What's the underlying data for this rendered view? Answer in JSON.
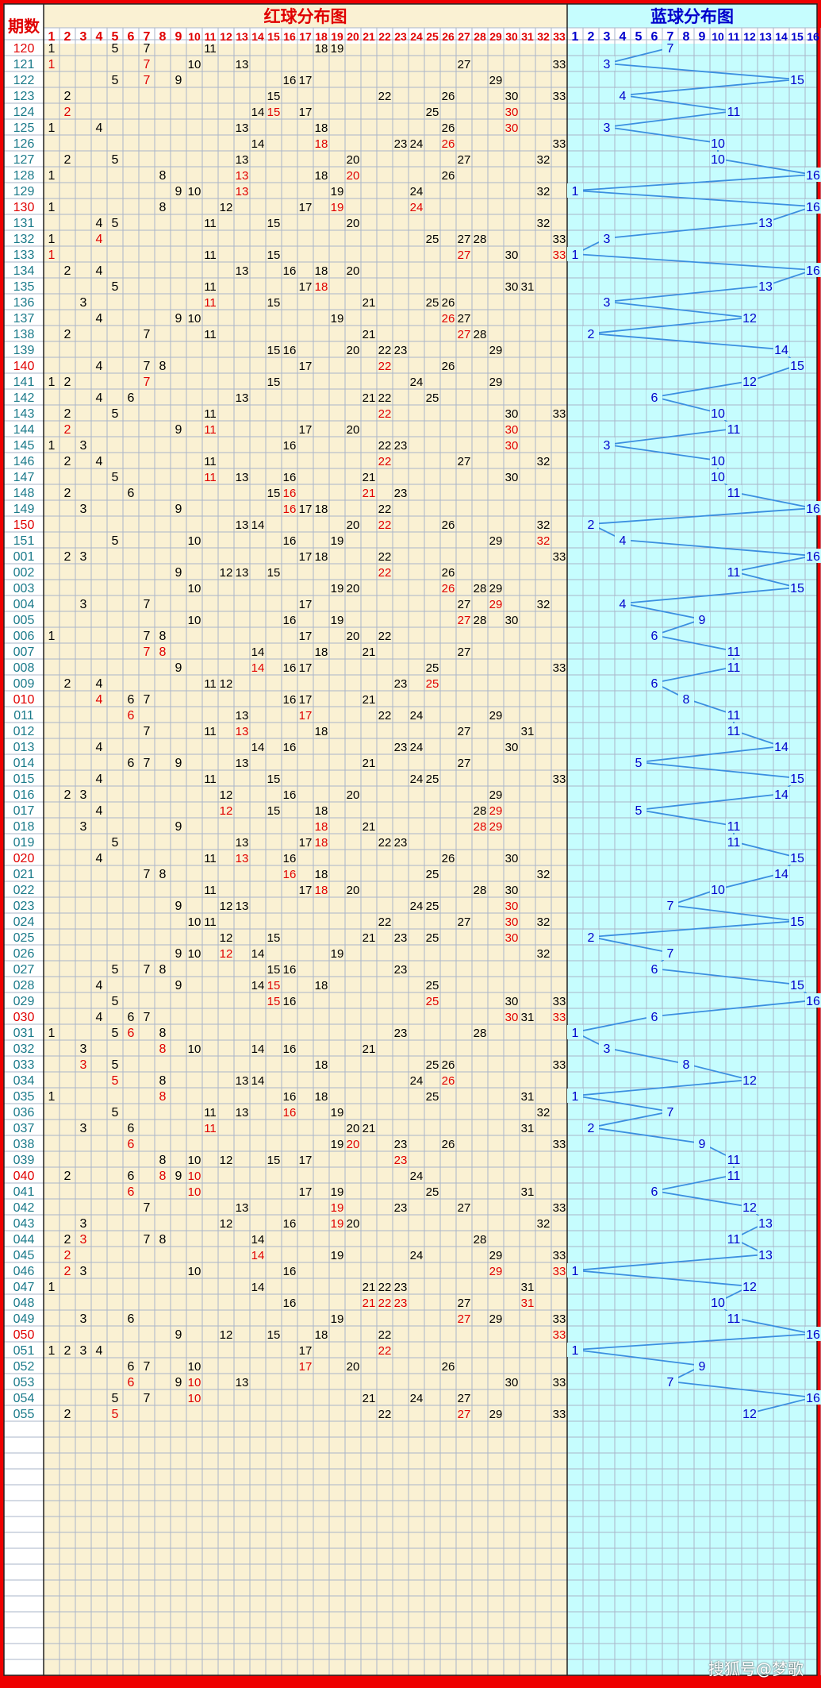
{
  "headers": {
    "period": "期数",
    "red": "红球分布图",
    "blue": "蓝球分布图"
  },
  "watermark": "搜狐号@梦歌",
  "colors": {
    "frame": "#ee0000",
    "redBg": "#faf1d3",
    "blueBg": "#c6fdfe",
    "grid": "#aab5c8",
    "number": "#000000",
    "repeat": "#e00000",
    "blueNum": "#0000cc",
    "line": "#3b8fe0",
    "period": "#1a7a8a",
    "periodAlt": "#e00000"
  },
  "chart_data": {
    "type": "table",
    "red_columns": 33,
    "blue_columns": 16,
    "rows": [
      {
        "p": "120",
        "r": [
          1,
          5,
          7,
          11,
          18,
          19
        ],
        "b": 7
      },
      {
        "p": "121",
        "r": [
          1,
          7,
          10,
          13,
          27,
          33
        ],
        "b": 3
      },
      {
        "p": "122",
        "r": [
          5,
          7,
          9,
          16,
          17,
          29
        ],
        "b": 15
      },
      {
        "p": "123",
        "r": [
          2,
          15,
          22,
          26,
          30,
          33
        ],
        "b": 4
      },
      {
        "p": "124",
        "r": [
          2,
          14,
          15,
          17,
          25,
          30
        ],
        "b": 11
      },
      {
        "p": "125",
        "r": [
          1,
          4,
          13,
          18,
          26,
          30
        ],
        "b": 3
      },
      {
        "p": "126",
        "r": [
          14,
          18,
          23,
          24,
          26,
          33
        ],
        "b": 10
      },
      {
        "p": "127",
        "r": [
          2,
          5,
          13,
          20,
          27,
          32
        ],
        "b": 10
      },
      {
        "p": "128",
        "r": [
          1,
          8,
          13,
          18,
          20,
          26
        ],
        "b": 16
      },
      {
        "p": "129",
        "r": [
          9,
          10,
          13,
          19,
          24,
          32
        ],
        "b": 1
      },
      {
        "p": "130",
        "r": [
          1,
          8,
          12,
          17,
          19,
          24
        ],
        "b": 16
      },
      {
        "p": "131",
        "r": [
          4,
          5,
          11,
          15,
          20,
          32
        ],
        "b": 13
      },
      {
        "p": "132",
        "r": [
          1,
          4,
          25,
          27,
          28,
          33
        ],
        "b": 3
      },
      {
        "p": "133",
        "r": [
          1,
          11,
          15,
          27,
          30,
          33
        ],
        "b": 1
      },
      {
        "p": "134",
        "r": [
          2,
          4,
          13,
          16,
          18,
          20
        ],
        "b": 16
      },
      {
        "p": "135",
        "r": [
          5,
          11,
          17,
          18,
          30,
          31
        ],
        "b": 13
      },
      {
        "p": "136",
        "r": [
          3,
          11,
          15,
          21,
          25,
          26
        ],
        "b": 3
      },
      {
        "p": "137",
        "r": [
          4,
          9,
          10,
          19,
          26,
          27
        ],
        "b": 12
      },
      {
        "p": "138",
        "r": [
          2,
          7,
          11,
          21,
          27,
          28
        ],
        "b": 2
      },
      {
        "p": "139",
        "r": [
          15,
          16,
          20,
          22,
          23,
          29
        ],
        "b": 14
      },
      {
        "p": "140",
        "r": [
          4,
          7,
          8,
          17,
          22,
          26
        ],
        "b": 15
      },
      {
        "p": "141",
        "r": [
          1,
          2,
          7,
          15,
          24,
          29
        ],
        "b": 12
      },
      {
        "p": "142",
        "r": [
          4,
          6,
          13,
          21,
          22,
          25
        ],
        "b": 6
      },
      {
        "p": "143",
        "r": [
          2,
          5,
          11,
          22,
          30,
          33
        ],
        "b": 10
      },
      {
        "p": "144",
        "r": [
          2,
          9,
          11,
          17,
          20,
          30
        ],
        "b": 11
      },
      {
        "p": "145",
        "r": [
          1,
          3,
          16,
          22,
          23,
          30
        ],
        "b": 3
      },
      {
        "p": "146",
        "r": [
          2,
          4,
          11,
          22,
          27,
          32
        ],
        "b": 10
      },
      {
        "p": "147",
        "r": [
          5,
          11,
          13,
          16,
          21,
          30
        ],
        "b": 10
      },
      {
        "p": "148",
        "r": [
          2,
          6,
          15,
          16,
          21,
          23
        ],
        "b": 11
      },
      {
        "p": "149",
        "r": [
          3,
          9,
          16,
          17,
          18,
          22
        ],
        "b": 16
      },
      {
        "p": "150",
        "r": [
          13,
          14,
          20,
          22,
          26,
          32
        ],
        "b": 2
      },
      {
        "p": "151",
        "r": [
          5,
          10,
          16,
          19,
          29,
          32
        ],
        "b": 4
      },
      {
        "p": "001",
        "r": [
          2,
          3,
          17,
          18,
          22,
          33
        ],
        "b": 16
      },
      {
        "p": "002",
        "r": [
          9,
          12,
          13,
          15,
          22,
          26
        ],
        "b": 11
      },
      {
        "p": "003",
        "r": [
          10,
          19,
          20,
          26,
          28,
          29
        ],
        "b": 15
      },
      {
        "p": "004",
        "r": [
          3,
          7,
          17,
          27,
          29,
          32
        ],
        "b": 4
      },
      {
        "p": "005",
        "r": [
          10,
          16,
          19,
          27,
          28,
          30
        ],
        "b": 9
      },
      {
        "p": "006",
        "r": [
          1,
          7,
          8,
          17,
          20,
          22
        ],
        "b": 6
      },
      {
        "p": "007",
        "r": [
          7,
          8,
          14,
          18,
          21,
          27
        ],
        "b": 11
      },
      {
        "p": "008",
        "r": [
          9,
          14,
          16,
          17,
          25,
          33
        ],
        "b": 11
      },
      {
        "p": "009",
        "r": [
          2,
          4,
          11,
          12,
          23,
          25
        ],
        "b": 6
      },
      {
        "p": "010",
        "r": [
          4,
          6,
          7,
          16,
          17,
          21
        ],
        "b": 8
      },
      {
        "p": "011",
        "r": [
          6,
          13,
          17,
          22,
          24,
          29
        ],
        "b": 11
      },
      {
        "p": "012",
        "r": [
          7,
          11,
          13,
          18,
          27,
          31
        ],
        "b": 11
      },
      {
        "p": "013",
        "r": [
          4,
          14,
          16,
          23,
          24,
          30
        ],
        "b": 14
      },
      {
        "p": "014",
        "r": [
          6,
          7,
          9,
          13,
          21,
          27
        ],
        "b": 5
      },
      {
        "p": "015",
        "r": [
          4,
          11,
          15,
          24,
          25,
          33
        ],
        "b": 15
      },
      {
        "p": "016",
        "r": [
          2,
          3,
          12,
          16,
          20,
          29
        ],
        "b": 14
      },
      {
        "p": "017",
        "r": [
          4,
          12,
          15,
          18,
          28,
          29
        ],
        "b": 5
      },
      {
        "p": "018",
        "r": [
          3,
          9,
          18,
          21,
          28,
          29
        ],
        "b": 11
      },
      {
        "p": "019",
        "r": [
          5,
          13,
          17,
          18,
          22,
          23
        ],
        "b": 11
      },
      {
        "p": "020",
        "r": [
          4,
          11,
          13,
          16,
          26,
          30
        ],
        "b": 15
      },
      {
        "p": "021",
        "r": [
          7,
          8,
          16,
          18,
          25,
          32
        ],
        "b": 14
      },
      {
        "p": "022",
        "r": [
          11,
          17,
          18,
          20,
          28,
          30
        ],
        "b": 10
      },
      {
        "p": "023",
        "r": [
          9,
          12,
          13,
          24,
          25,
          30
        ],
        "b": 7
      },
      {
        "p": "024",
        "r": [
          10,
          11,
          22,
          27,
          30,
          32
        ],
        "b": 15
      },
      {
        "p": "025",
        "r": [
          12,
          15,
          21,
          23,
          25,
          30
        ],
        "b": 2
      },
      {
        "p": "026",
        "r": [
          9,
          10,
          12,
          14,
          19,
          32
        ],
        "b": 7
      },
      {
        "p": "027",
        "r": [
          5,
          7,
          8,
          15,
          16,
          23
        ],
        "b": 6
      },
      {
        "p": "028",
        "r": [
          4,
          9,
          14,
          15,
          18,
          25
        ],
        "b": 15
      },
      {
        "p": "029",
        "r": [
          5,
          15,
          16,
          25,
          30,
          33
        ],
        "b": 16
      },
      {
        "p": "030",
        "r": [
          4,
          6,
          7,
          30,
          31,
          33
        ],
        "b": 6
      },
      {
        "p": "031",
        "r": [
          1,
          5,
          6,
          8,
          23,
          28
        ],
        "b": 1
      },
      {
        "p": "032",
        "r": [
          3,
          8,
          10,
          14,
          16,
          21
        ],
        "b": 3
      },
      {
        "p": "033",
        "r": [
          3,
          5,
          18,
          25,
          26,
          33
        ],
        "b": 8
      },
      {
        "p": "034",
        "r": [
          5,
          8,
          13,
          14,
          24,
          26
        ],
        "b": 12
      },
      {
        "p": "035",
        "r": [
          1,
          8,
          16,
          18,
          25,
          31
        ],
        "b": 1
      },
      {
        "p": "036",
        "r": [
          5,
          11,
          13,
          16,
          19,
          32
        ],
        "b": 7
      },
      {
        "p": "037",
        "r": [
          3,
          6,
          11,
          20,
          21,
          31
        ],
        "b": 2
      },
      {
        "p": "038",
        "r": [
          6,
          19,
          20,
          23,
          26,
          33
        ],
        "b": 9
      },
      {
        "p": "039",
        "r": [
          8,
          10,
          12,
          15,
          17,
          23
        ],
        "b": 11
      },
      {
        "p": "040",
        "r": [
          2,
          6,
          8,
          9,
          10,
          24
        ],
        "b": 11
      },
      {
        "p": "041",
        "r": [
          6,
          10,
          17,
          19,
          25,
          31
        ],
        "b": 6
      },
      {
        "p": "042",
        "r": [
          7,
          13,
          19,
          23,
          27,
          33
        ],
        "b": 12
      },
      {
        "p": "043",
        "r": [
          3,
          12,
          16,
          19,
          20,
          32
        ],
        "b": 13
      },
      {
        "p": "044",
        "r": [
          2,
          3,
          7,
          8,
          14,
          28
        ],
        "b": 11
      },
      {
        "p": "045",
        "r": [
          2,
          14,
          19,
          24,
          29,
          33
        ],
        "b": 13
      },
      {
        "p": "046",
        "r": [
          2,
          3,
          10,
          16,
          29,
          33
        ],
        "b": 1
      },
      {
        "p": "047",
        "r": [
          1,
          14,
          21,
          22,
          23,
          31
        ],
        "b": 12
      },
      {
        "p": "048",
        "r": [
          16,
          21,
          22,
          23,
          27,
          31
        ],
        "b": 10
      },
      {
        "p": "049",
        "r": [
          3,
          6,
          19,
          27,
          29,
          33
        ],
        "b": 11
      },
      {
        "p": "050",
        "r": [
          9,
          12,
          15,
          18,
          22,
          33
        ],
        "b": 16
      },
      {
        "p": "051",
        "r": [
          1,
          2,
          3,
          4,
          17,
          22
        ],
        "b": 1
      },
      {
        "p": "052",
        "r": [
          6,
          7,
          10,
          17,
          20,
          26
        ],
        "b": 9
      },
      {
        "p": "053",
        "r": [
          6,
          9,
          10,
          13,
          30,
          33
        ],
        "b": 7
      },
      {
        "p": "054",
        "r": [
          5,
          7,
          10,
          21,
          24,
          27
        ],
        "b": 16
      },
      {
        "p": "055",
        "r": [
          2,
          5,
          22,
          27,
          29,
          33
        ],
        "b": 12
      }
    ]
  }
}
